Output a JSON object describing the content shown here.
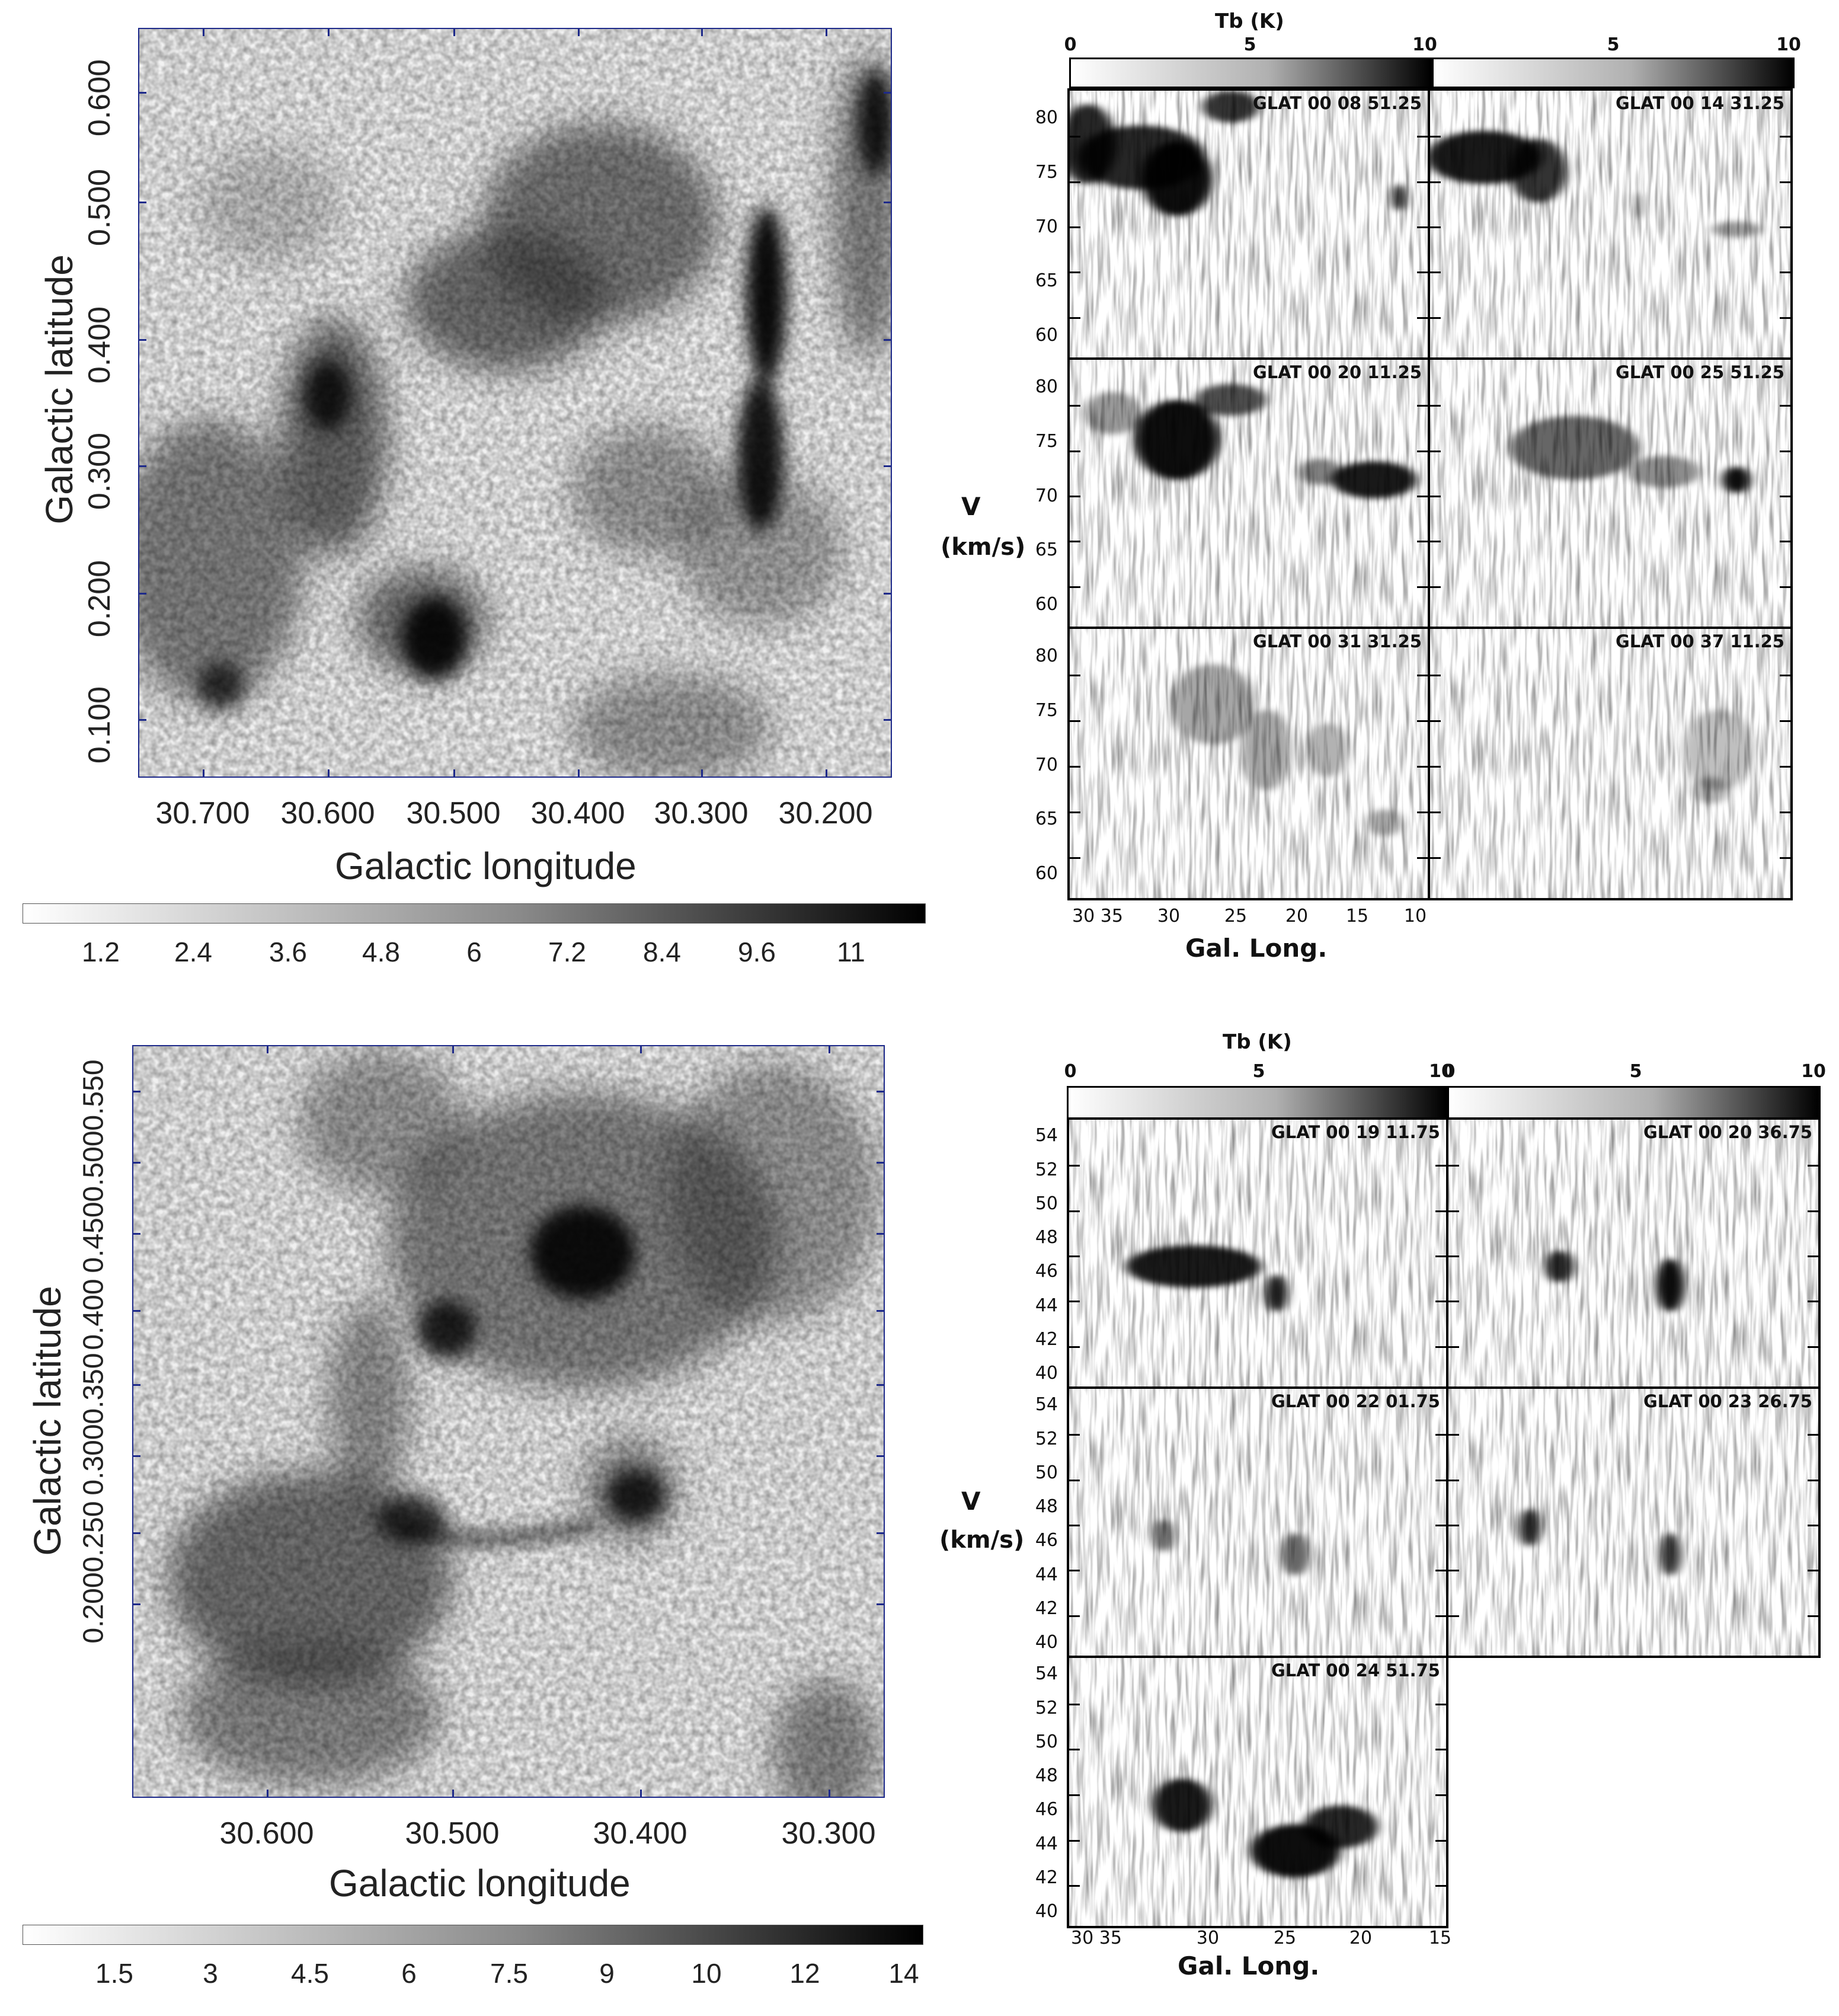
{
  "top": {
    "map": {
      "ylabel": "Galactic latitude",
      "xlabel": "Galactic longitude",
      "yticks": [
        "0.600",
        "0.500",
        "0.400",
        "0.300",
        "0.200",
        "0.100"
      ],
      "xticks": [
        "30.700",
        "30.600",
        "30.500",
        "30.400",
        "30.300",
        "30.200"
      ],
      "colorbar_ticks": [
        "1.2",
        "2.4",
        "3.6",
        "4.8",
        "6",
        "7.2",
        "8.4",
        "9.6",
        "11"
      ]
    },
    "pv": {
      "colorbar_label": "Tb (K)",
      "colorbar_ticks_left": [
        "0",
        "5",
        "10"
      ],
      "colorbar_ticks_right": [
        "5",
        "10"
      ],
      "ylabel_v": "V",
      "ylabel_unit": "(km/s)",
      "xlabel": "Gal. Long.",
      "vticks": [
        "80",
        "75",
        "70",
        "65",
        "60"
      ],
      "xticks": [
        "30 35",
        "30",
        "25",
        "20",
        "15",
        "10"
      ],
      "panels": [
        "GLAT 00 08 51.25",
        "GLAT 00 14 31.25",
        "GLAT 00 20 11.25",
        "GLAT 00 25 51.25",
        "GLAT 00 31 31.25",
        "GLAT 00 37 11.25"
      ]
    }
  },
  "bottom": {
    "map": {
      "ylabel": "Galactic latitude",
      "xlabel": "Galactic longitude",
      "yticks": [
        "0.550",
        "0.500",
        "0.450",
        "0.400",
        "0.350",
        "0.300",
        "0.250",
        "0.200"
      ],
      "xticks": [
        "30.600",
        "30.500",
        "30.400",
        "30.300"
      ],
      "colorbar_ticks": [
        "1.5",
        "3",
        "4.5",
        "6",
        "7.5",
        "9",
        "10",
        "12",
        "14"
      ]
    },
    "pv": {
      "colorbar_label": "Tb (K)",
      "colorbar_ticks_left": [
        "0",
        "5",
        "10"
      ],
      "colorbar_ticks_right": [
        "0",
        "5",
        "10"
      ],
      "ylabel_v": "V",
      "ylabel_unit": "(km/s)",
      "xlabel": "Gal. Long.",
      "vticks": [
        "54",
        "52",
        "50",
        "48",
        "46",
        "44",
        "42",
        "40"
      ],
      "xticks": [
        "30 35",
        "30",
        "25",
        "20",
        "15"
      ],
      "panels": [
        "GLAT 00 19 11.75",
        "GLAT 00 20 36.75",
        "GLAT 00 22 01.75",
        "GLAT 00 23 26.75",
        "GLAT 00 24 51.75"
      ]
    }
  }
}
